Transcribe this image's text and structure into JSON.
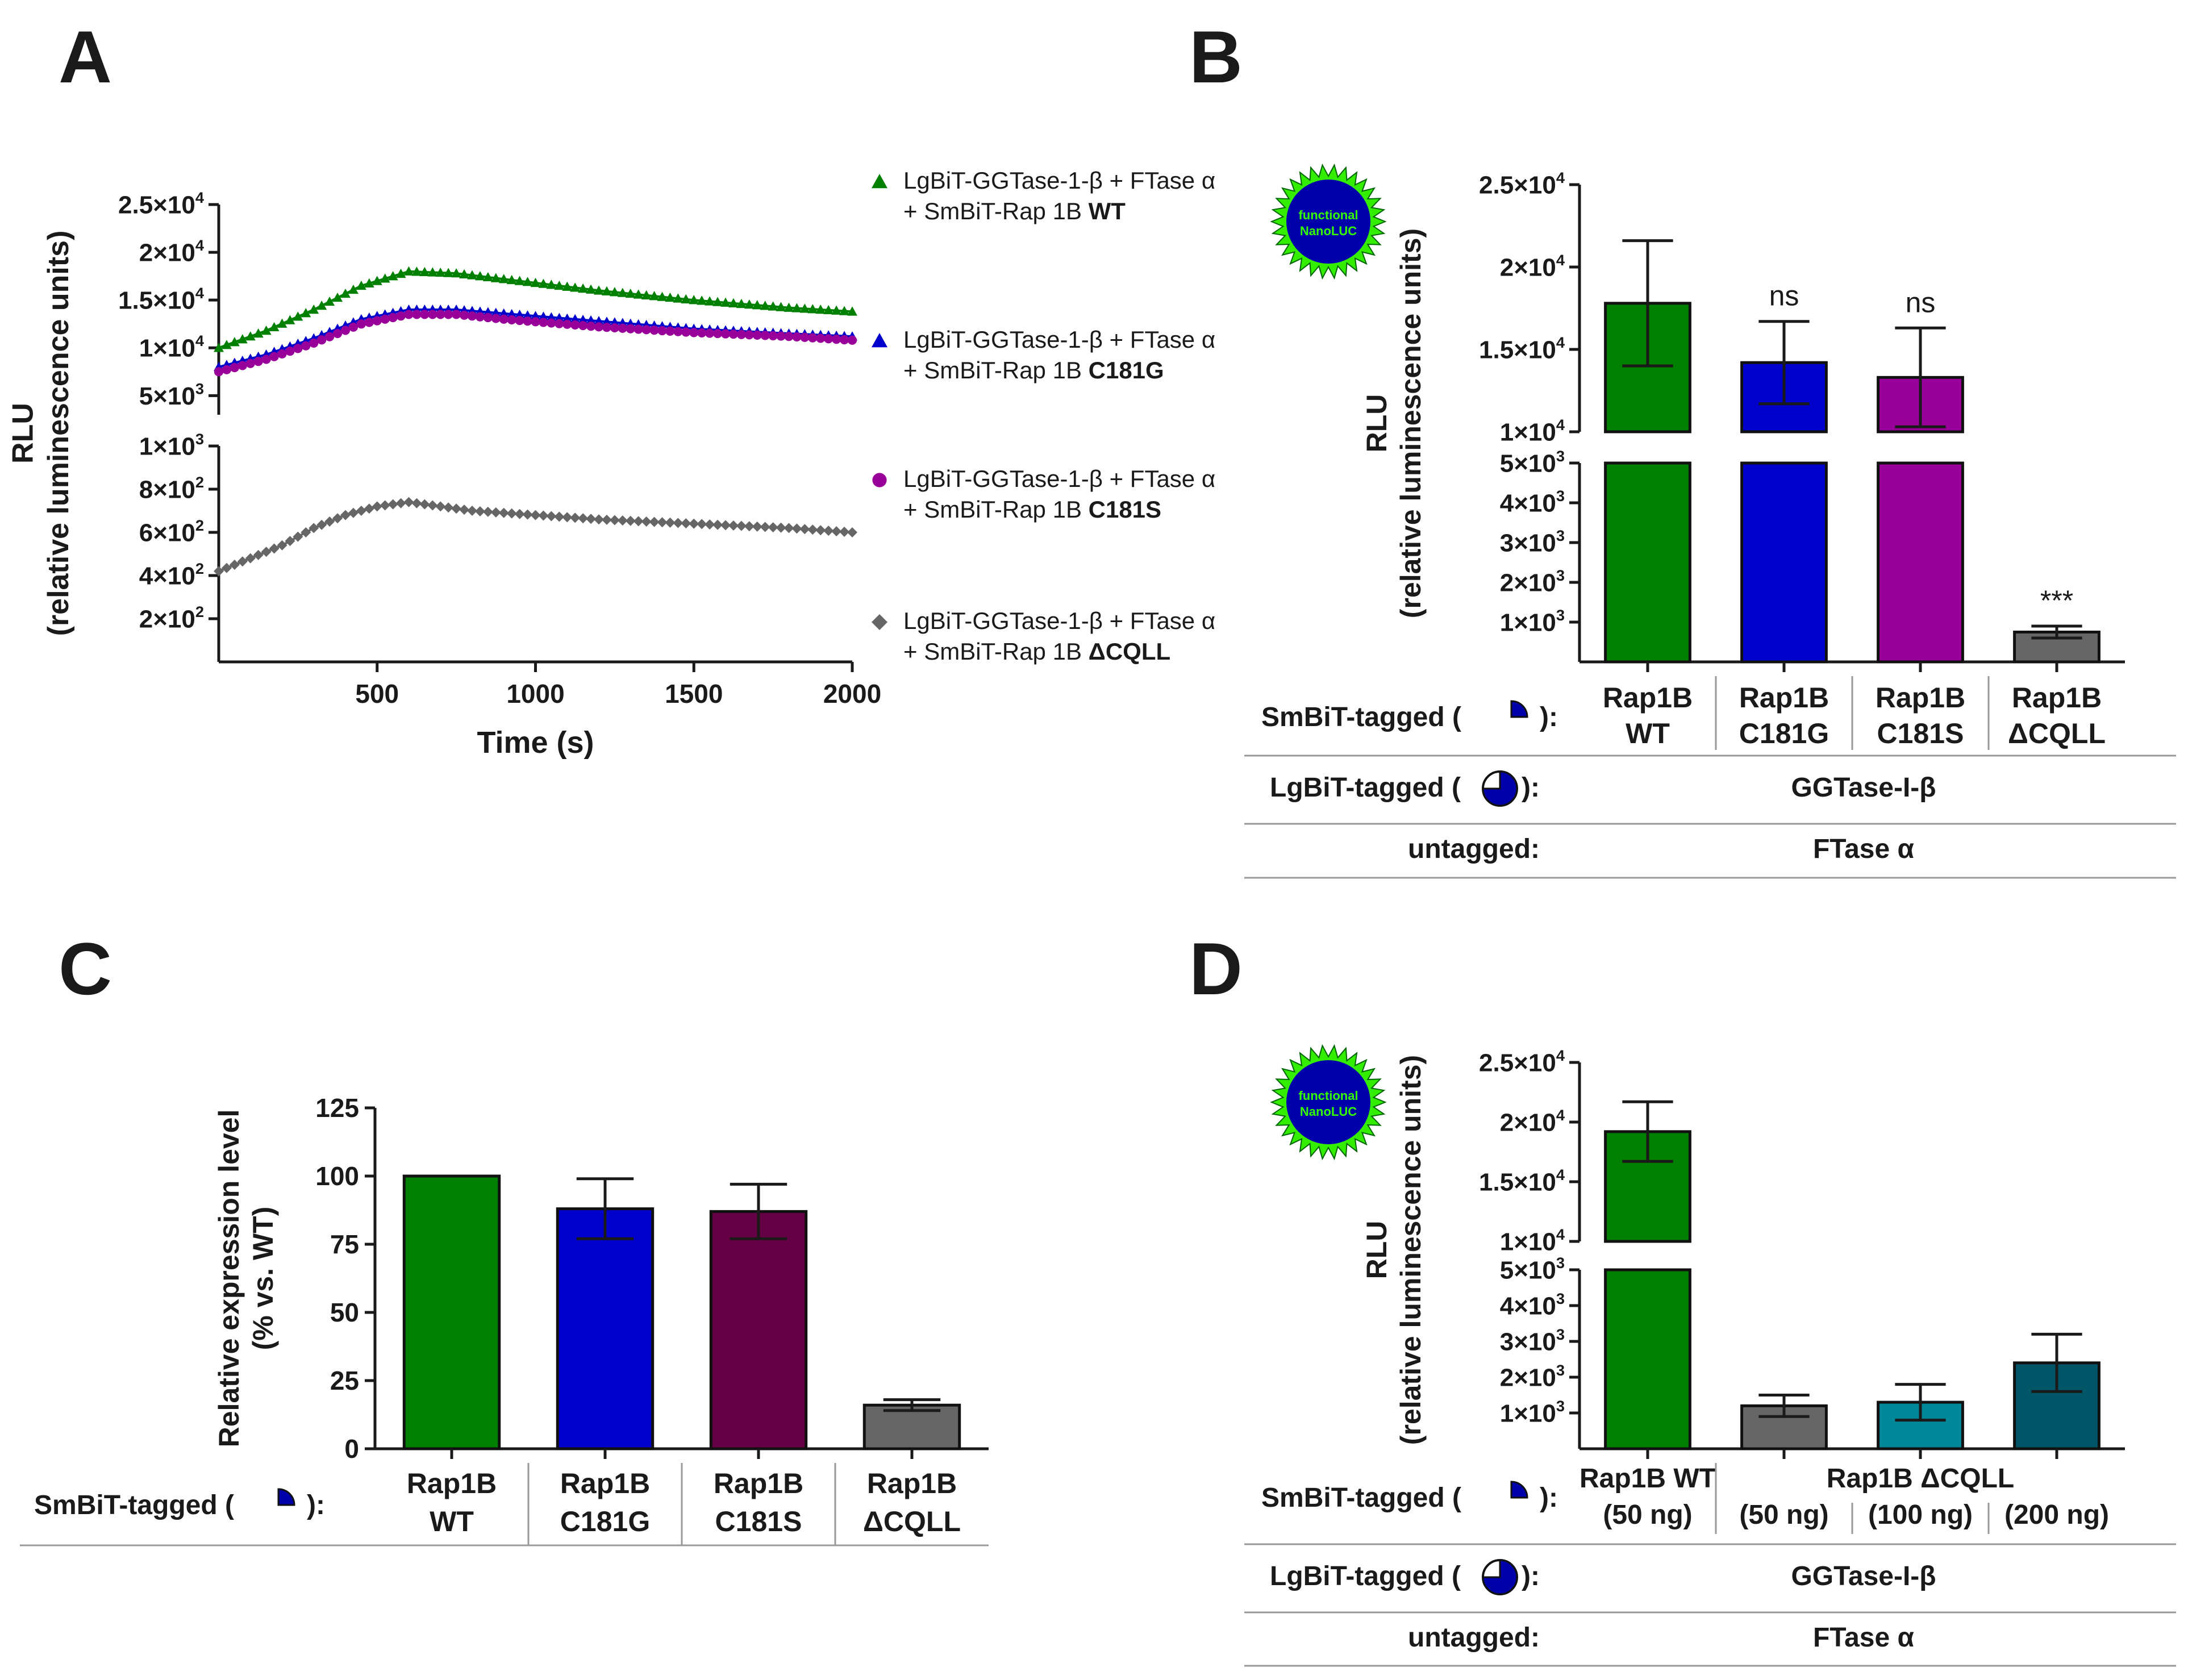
{
  "colors": {
    "wt": "#008000",
    "c181g": "#0000cc",
    "c181s_a": "#990099",
    "c181s_c": "#660044",
    "dcqll": "#666666",
    "teal_100": "#008899",
    "teal_200": "#005566",
    "axis": "#1a1a1a",
    "badge_fill": "#0000aa",
    "badge_star": "#33ee00",
    "badge_text": "#33ff00",
    "divider": "#999999"
  },
  "panels": {
    "A": {
      "label": "A",
      "chart_data": {
        "type": "line",
        "xlabel": "Time (s)",
        "ylabel": [
          "RLU",
          "(relative luminescence units)"
        ],
        "xlim": [
          0,
          2000
        ],
        "xticks": [
          "500",
          "1000",
          "1500",
          "2000"
        ],
        "xtick_values": [
          500,
          1000,
          1500,
          2000
        ],
        "broken_y_axis": true,
        "upper_segment": {
          "ylim": [
            3000,
            25000
          ],
          "ticks": [
            5000,
            10000,
            15000,
            20000,
            25000
          ],
          "tick_labels": [
            [
              "5×10",
              "3"
            ],
            [
              "1×10",
              "4"
            ],
            [
              "1.5×10",
              "4"
            ],
            [
              "2×10",
              "4"
            ],
            [
              "2.5×10",
              "4"
            ]
          ]
        },
        "lower_segment": {
          "ylim": [
            0,
            1000
          ],
          "ticks": [
            200,
            400,
            600,
            800,
            1000
          ],
          "tick_labels": [
            [
              "2×10",
              "2"
            ],
            [
              "4×10",
              "2"
            ],
            [
              "6×10",
              "2"
            ],
            [
              "8×10",
              "2"
            ],
            [
              "1×10",
              "3"
            ]
          ]
        },
        "series": [
          {
            "name_lines": [
              [
                [
                  "LgBiT-GGTase-1-β + FTase α",
                  ""
                ]
              ],
              [
                [
                  "+ SmBiT-Rap 1B ",
                  ""
                ],
                [
                  "WT",
                  "b"
                ]
              ]
            ],
            "marker": "triangle",
            "color_key": "wt",
            "x": [
              0,
              150,
              300,
              450,
              600,
              750,
              900,
              1200,
              1500,
              1800,
              2000
            ],
            "y": [
              10000,
              11800,
              14000,
              16500,
              18000,
              17800,
              17200,
              16000,
              15000,
              14200,
              13800
            ]
          },
          {
            "name_lines": [
              [
                [
                  "LgBiT-GGTase-1-β + FTase α",
                  ""
                ]
              ],
              [
                [
                  "+ SmBiT-Rap 1B ",
                  ""
                ],
                [
                  "C181G",
                  "b"
                ]
              ]
            ],
            "marker": "triangle",
            "color_key": "c181g",
            "x": [
              0,
              150,
              300,
              450,
              600,
              750,
              900,
              1200,
              1500,
              1800,
              2000
            ],
            "y": [
              8000,
              9300,
              11000,
              13000,
              14000,
              14000,
              13600,
              12800,
              12000,
              11500,
              11200
            ]
          },
          {
            "name_lines": [
              [
                [
                  "LgBiT-GGTase-1-β + FTase α",
                  ""
                ]
              ],
              [
                [
                  "+ SmBiT-Rap 1B ",
                  ""
                ],
                [
                  "C181S",
                  "b"
                ]
              ]
            ],
            "marker": "circle",
            "color_key": "c181s_a",
            "x": [
              0,
              150,
              300,
              450,
              600,
              750,
              900,
              1200,
              1500,
              1800,
              2000
            ],
            "y": [
              7500,
              8800,
              10500,
              12500,
              13500,
              13500,
              13000,
              12200,
              11600,
              11200,
              10800
            ]
          },
          {
            "name_lines": [
              [
                [
                  "LgBiT-GGTase-1-β + FTase α",
                  ""
                ]
              ],
              [
                [
                  "+ SmBiT-Rap 1B ",
                  ""
                ],
                [
                  "ΔCQLL",
                  "b"
                ]
              ]
            ],
            "marker": "diamond",
            "color_key": "dcqll",
            "x": [
              0,
              100,
              200,
              300,
              400,
              500,
              600,
              700,
              800,
              1000,
              1200,
              1500,
              1800,
              2000
            ],
            "y": [
              420,
              480,
              540,
              620,
              680,
              720,
              740,
              720,
              700,
              680,
              660,
              640,
              620,
              600
            ]
          }
        ]
      }
    },
    "B": {
      "label": "B",
      "badge_text": [
        "functional",
        "NanoLUC"
      ],
      "chart_data": {
        "type": "bar",
        "ylabel": [
          "RLU",
          "(relative luminescence units)"
        ],
        "categories": [
          [
            "Rap1B",
            "WT"
          ],
          [
            "Rap1B",
            "C181G"
          ],
          [
            "Rap1B",
            "C181S"
          ],
          [
            "Rap1B",
            "ΔCQLL"
          ]
        ],
        "values": [
          17800,
          14200,
          13300,
          750
        ],
        "errors": [
          3800,
          2500,
          3000,
          150
        ],
        "annotations": [
          "",
          "ns",
          "ns",
          "***"
        ],
        "color_keys": [
          "wt",
          "c181g",
          "c181s_a",
          "dcqll"
        ],
        "broken_y_axis": true,
        "upper_segment": {
          "ylim": [
            10000,
            25000
          ],
          "ticks": [
            10000,
            15000,
            20000,
            25000
          ],
          "tick_labels": [
            [
              "1×10",
              "4"
            ],
            [
              "1.5×10",
              "4"
            ],
            [
              "2×10",
              "4"
            ],
            [
              "2.5×10",
              "4"
            ]
          ]
        },
        "lower_segment": {
          "ylim": [
            0,
            5000
          ],
          "ticks": [
            1000,
            2000,
            3000,
            4000,
            5000
          ],
          "tick_labels": [
            [
              "1×10",
              "3"
            ],
            [
              "2×10",
              "3"
            ],
            [
              "3×10",
              "3"
            ],
            [
              "4×10",
              "3"
            ],
            [
              "5×10",
              "3"
            ]
          ]
        }
      },
      "table": {
        "row1_label": [
          "SmBiT-tagged (",
          "):"
        ],
        "row2_label": [
          "LgBiT-tagged (",
          "):"
        ],
        "row2_value": "GGTase-I-β",
        "row3_label": "untagged:",
        "row3_value": "FTase α"
      }
    },
    "C": {
      "label": "C",
      "chart_data": {
        "type": "bar",
        "ylabel": [
          "Relative expression level",
          "(% vs. WT)"
        ],
        "categories": [
          [
            "Rap1B",
            "WT"
          ],
          [
            "Rap1B",
            "C181G"
          ],
          [
            "Rap1B",
            "C181S"
          ],
          [
            "Rap1B",
            "ΔCQLL"
          ]
        ],
        "values": [
          100,
          88,
          87,
          16
        ],
        "errors": [
          0,
          11,
          10,
          2
        ],
        "color_keys": [
          "wt",
          "c181g",
          "c181s_c",
          "dcqll"
        ],
        "ylim": [
          0,
          125
        ],
        "yticks": [
          0,
          25,
          50,
          75,
          100,
          125
        ],
        "ytick_labels": [
          "0",
          "25",
          "50",
          "75",
          "100",
          "125"
        ]
      },
      "table": {
        "row1_label": [
          "SmBiT-tagged (",
          "):"
        ]
      }
    },
    "D": {
      "label": "D",
      "badge_text": [
        "functional",
        "NanoLUC"
      ],
      "chart_data": {
        "type": "bar",
        "ylabel": [
          "RLU",
          "(relative luminescence units)"
        ],
        "categories": [
          [
            "Rap1B WT",
            "(50 ng)"
          ],
          [
            "(50 ng)"
          ],
          [
            "(100 ng)"
          ],
          [
            "(200 ng)"
          ]
        ],
        "group_label": "Rap1B ΔCQLL",
        "values": [
          19200,
          1200,
          1300,
          2400
        ],
        "errors": [
          2500,
          300,
          500,
          800
        ],
        "color_keys": [
          "wt",
          "dcqll",
          "teal_100",
          "teal_200"
        ],
        "broken_y_axis": true,
        "upper_segment": {
          "ylim": [
            10000,
            25000
          ],
          "ticks": [
            10000,
            15000,
            20000,
            25000
          ],
          "tick_labels": [
            [
              "1×10",
              "4"
            ],
            [
              "1.5×10",
              "4"
            ],
            [
              "2×10",
              "4"
            ],
            [
              "2.5×10",
              "4"
            ]
          ]
        },
        "lower_segment": {
          "ylim": [
            0,
            5000
          ],
          "ticks": [
            1000,
            2000,
            3000,
            4000,
            5000
          ],
          "tick_labels": [
            [
              "1×10",
              "3"
            ],
            [
              "2×10",
              "3"
            ],
            [
              "3×10",
              "3"
            ],
            [
              "4×10",
              "3"
            ],
            [
              "5×10",
              "3"
            ]
          ]
        }
      },
      "table": {
        "row1_label": [
          "SmBiT-tagged (",
          "):"
        ],
        "row2_label": [
          "LgBiT-tagged (",
          "):"
        ],
        "row2_value": "GGTase-I-β",
        "row3_label": "untagged:",
        "row3_value": "FTase α"
      }
    }
  }
}
